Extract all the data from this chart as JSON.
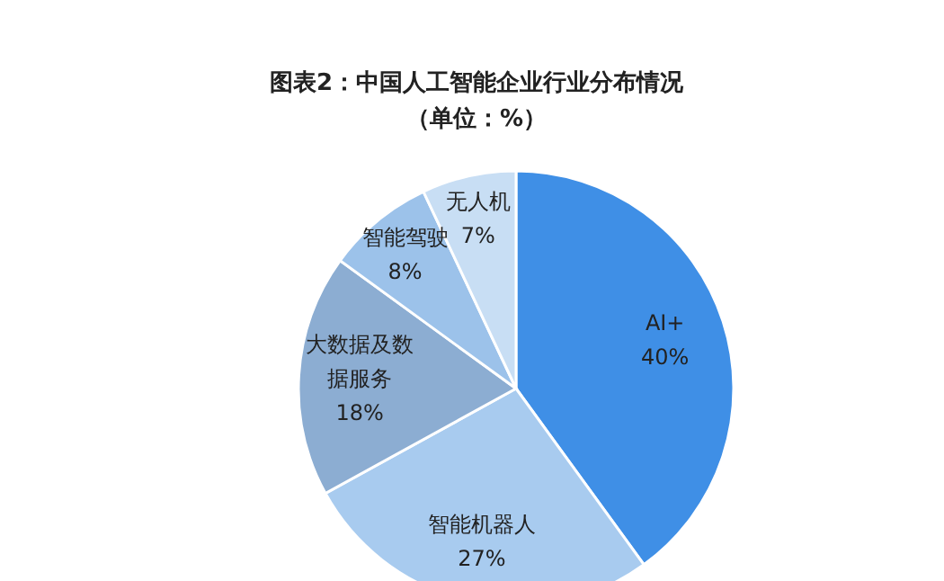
{
  "chart_data": {
    "type": "pie",
    "title": "图表2：中国人工智能企业行业分布情况",
    "subtitle": "（单位：%）",
    "categories": [
      "AI+",
      "智能机器人",
      "大数据及数据服务",
      "智能驾驶",
      "无人机"
    ],
    "values": [
      40,
      27,
      18,
      8,
      7
    ],
    "colors": [
      "#3f8fe6",
      "#a8cbef",
      "#8cadd2",
      "#9cc2ea",
      "#c8def4"
    ],
    "value_labels": [
      "40%",
      "27%",
      "18%",
      "8%",
      "7%"
    ]
  }
}
